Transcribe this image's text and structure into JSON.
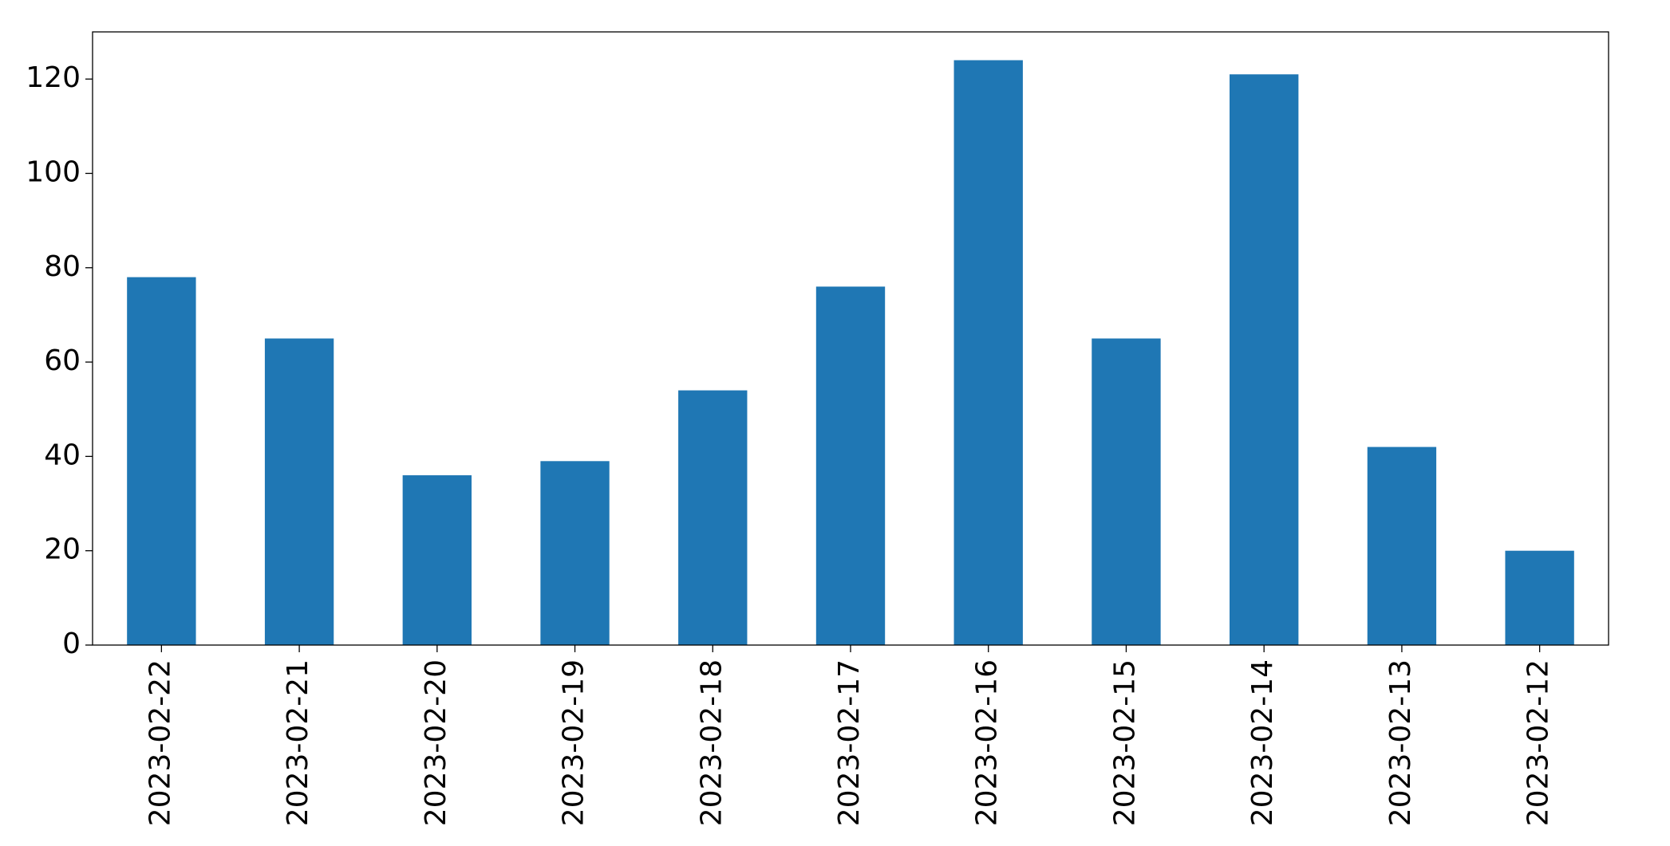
{
  "chart_data": {
    "type": "bar",
    "categories": [
      "2023-02-22",
      "2023-02-21",
      "2023-02-20",
      "2023-02-19",
      "2023-02-18",
      "2023-02-17",
      "2023-02-16",
      "2023-02-15",
      "2023-02-14",
      "2023-02-13",
      "2023-02-12"
    ],
    "values": [
      78,
      65,
      36,
      39,
      54,
      76,
      124,
      65,
      121,
      42,
      20
    ],
    "color": "#1f77b4",
    "ylim": [
      0,
      130
    ],
    "yticks": [
      0,
      20,
      40,
      60,
      80,
      100,
      120
    ],
    "grid": false
  }
}
